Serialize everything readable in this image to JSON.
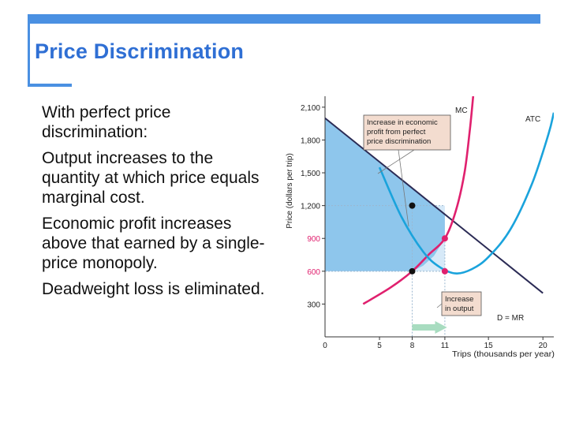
{
  "slide": {
    "title": "Price Discrimination",
    "bullets": [
      "With perfect price discrimination:",
      "Output increases to the quantity at which price equals marginal cost.",
      "Economic profit increases above that earned by a single-price monopoly.",
      "Deadweight loss is eliminated."
    ]
  },
  "colors": {
    "accent": "#4a90e2",
    "title": "#2f6fd4",
    "mc": "#e0206e",
    "atc": "#1aa3dc",
    "demand": "#2b2b55",
    "profit_fill": "#8ec6ec",
    "rect_fill": "#d6e9f8",
    "callout_fill": "#f3dccf",
    "arrow": "#a8dcc0"
  },
  "chart_data": {
    "type": "line",
    "xlabel": "Trips (thousands per year)",
    "ylabel": "Price (dollars per trip)",
    "xlim": [
      0,
      21
    ],
    "ylim": [
      0,
      2200
    ],
    "xticks": [
      {
        "value": 0,
        "label": "0"
      },
      {
        "value": 5,
        "label": "5"
      },
      {
        "value": 8,
        "label": "8"
      },
      {
        "value": 11,
        "label": "11"
      },
      {
        "value": 15,
        "label": "15"
      },
      {
        "value": 20,
        "label": "20"
      }
    ],
    "yticks": [
      {
        "value": 300,
        "label": "300",
        "highlight": false
      },
      {
        "value": 600,
        "label": "600",
        "highlight": true
      },
      {
        "value": 900,
        "label": "900",
        "highlight": true
      },
      {
        "value": 1200,
        "label": "1,200",
        "highlight": false
      },
      {
        "value": 1500,
        "label": "1,500",
        "highlight": false
      },
      {
        "value": 1800,
        "label": "1,800",
        "highlight": false
      },
      {
        "value": 2100,
        "label": "2,100",
        "highlight": false
      }
    ],
    "series": [
      {
        "key": "demand",
        "name": "D = MR",
        "points": [
          [
            0,
            2000
          ],
          [
            20,
            400
          ]
        ]
      },
      {
        "key": "mc",
        "name": "MC",
        "points": [
          [
            3.5,
            300
          ],
          [
            6,
            450
          ],
          [
            8,
            600
          ],
          [
            9.5,
            750
          ],
          [
            11,
            900
          ],
          [
            12,
            1150
          ],
          [
            12.8,
            1500
          ],
          [
            13.3,
            1900
          ],
          [
            13.6,
            2200
          ]
        ]
      },
      {
        "key": "atc",
        "name": "ATC",
        "points": [
          [
            5,
            1550
          ],
          [
            7,
            1100
          ],
          [
            9,
            780
          ],
          [
            10.5,
            640
          ],
          [
            12,
            580
          ],
          [
            13.5,
            620
          ],
          [
            15,
            730
          ],
          [
            17,
            980
          ],
          [
            19,
            1400
          ],
          [
            20.5,
            1850
          ],
          [
            21,
            2050
          ]
        ]
      }
    ],
    "points": [
      {
        "x": 8,
        "y": 1200,
        "color": "black"
      },
      {
        "x": 8,
        "y": 600,
        "color": "black"
      },
      {
        "x": 11,
        "y": 900,
        "color": "mc"
      },
      {
        "x": 11,
        "y": 600,
        "color": "mc"
      }
    ],
    "annotations": [
      {
        "key": "profit",
        "text": [
          "Increase in economic",
          "profit from perfect",
          "price discrimination"
        ]
      },
      {
        "key": "output",
        "text": [
          "Increase",
          "in output"
        ]
      }
    ]
  }
}
